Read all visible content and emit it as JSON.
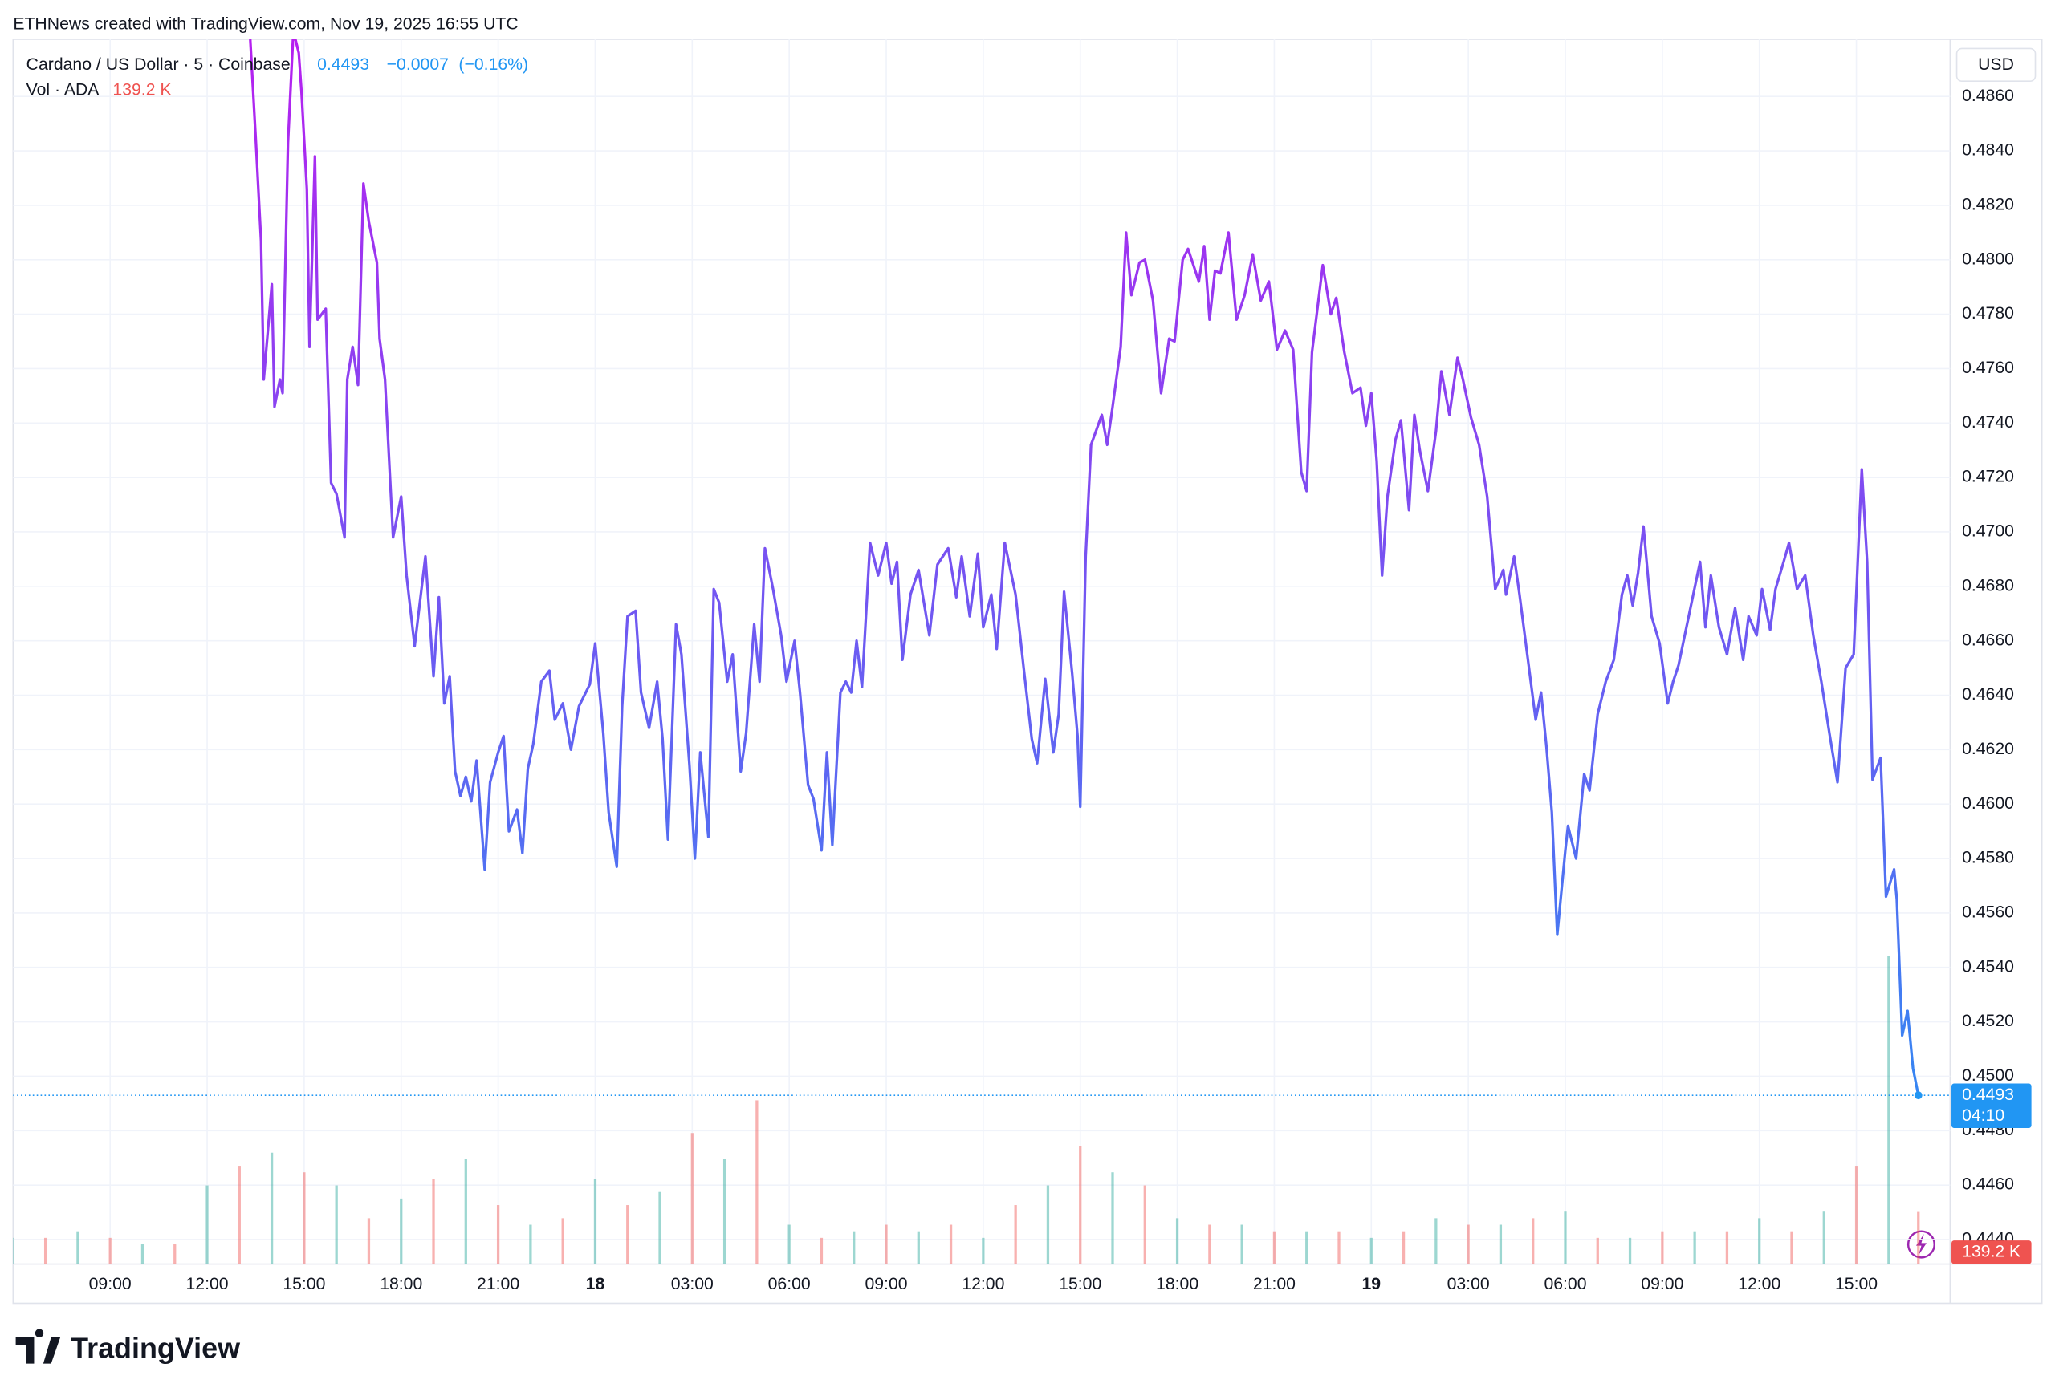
{
  "chart_data": {
    "type": "line",
    "attribution": "ETHNews created with TradingView.com, Nov 19, 2025 16:55 UTC",
    "title": "Cardano / US Dollar · 5 · Coinbase",
    "change": {
      "value": -0.0007,
      "label": "−0.0007"
    },
    "change_percent": {
      "value": -0.16,
      "label": "(−0.16%)"
    },
    "currency": "USD",
    "countdown": "04:10",
    "brand": "TradingView",
    "grid": true,
    "xlim": [
      "2025-11-17 06:00",
      "2025-11-19 17:54"
    ],
    "ylim": [
      0.4431,
      0.4881
    ],
    "xticks": [
      {
        "value": "2025-11-17 09:00",
        "label": "09:00"
      },
      {
        "value": "2025-11-17 12:00",
        "label": "12:00"
      },
      {
        "value": "2025-11-17 15:00",
        "label": "15:00"
      },
      {
        "value": "2025-11-17 18:00",
        "label": "18:00"
      },
      {
        "value": "2025-11-17 21:00",
        "label": "21:00"
      },
      {
        "value": "2025-11-18 00:00",
        "label": "18"
      },
      {
        "value": "2025-11-18 03:00",
        "label": "03:00"
      },
      {
        "value": "2025-11-18 06:00",
        "label": "06:00"
      },
      {
        "value": "2025-11-18 09:00",
        "label": "09:00"
      },
      {
        "value": "2025-11-18 12:00",
        "label": "12:00"
      },
      {
        "value": "2025-11-18 15:00",
        "label": "15:00"
      },
      {
        "value": "2025-11-18 18:00",
        "label": "18:00"
      },
      {
        "value": "2025-11-18 21:00",
        "label": "21:00"
      },
      {
        "value": "2025-11-19 00:00",
        "label": "19"
      },
      {
        "value": "2025-11-19 03:00",
        "label": "03:00"
      },
      {
        "value": "2025-11-19 06:00",
        "label": "06:00"
      },
      {
        "value": "2025-11-19 09:00",
        "label": "09:00"
      },
      {
        "value": "2025-11-19 12:00",
        "label": "12:00"
      },
      {
        "value": "2025-11-19 15:00",
        "label": "15:00"
      }
    ],
    "yticks": [
      {
        "value": 0.444,
        "label": "0.4440"
      },
      {
        "value": 0.446,
        "label": "0.4460"
      },
      {
        "value": 0.448,
        "label": "0.4480"
      },
      {
        "value": 0.45,
        "label": "0.4500"
      },
      {
        "value": 0.452,
        "label": "0.4520"
      },
      {
        "value": 0.454,
        "label": "0.4540"
      },
      {
        "value": 0.456,
        "label": "0.4560"
      },
      {
        "value": 0.458,
        "label": "0.4580"
      },
      {
        "value": 0.46,
        "label": "0.4600"
      },
      {
        "value": 0.462,
        "label": "0.4620"
      },
      {
        "value": 0.464,
        "label": "0.4640"
      },
      {
        "value": 0.466,
        "label": "0.4660"
      },
      {
        "value": 0.468,
        "label": "0.4680"
      },
      {
        "value": 0.47,
        "label": "0.4700"
      },
      {
        "value": 0.472,
        "label": "0.4720"
      },
      {
        "value": 0.474,
        "label": "0.4740"
      },
      {
        "value": 0.476,
        "label": "0.4760"
      },
      {
        "value": 0.478,
        "label": "0.4780"
      },
      {
        "value": 0.48,
        "label": "0.4800"
      },
      {
        "value": 0.482,
        "label": "0.4820"
      },
      {
        "value": 0.484,
        "label": "0.4840"
      },
      {
        "value": 0.486,
        "label": "0.4860"
      }
    ],
    "series": [
      {
        "name": "Cardano / US Dollar",
        "color": "#2196f3",
        "gradient_top": "#b620f0",
        "x": [
          "2025-11-17 13:20",
          "2025-11-17 13:30",
          "2025-11-17 13:40",
          "2025-11-17 13:45",
          "2025-11-17 14:00",
          "2025-11-17 14:05",
          "2025-11-17 14:15",
          "2025-11-17 14:20",
          "2025-11-17 14:30",
          "2025-11-17 14:40",
          "2025-11-17 14:50",
          "2025-11-17 14:55",
          "2025-11-17 15:05",
          "2025-11-17 15:10",
          "2025-11-17 15:20",
          "2025-11-17 15:25",
          "2025-11-17 15:40",
          "2025-11-17 15:50",
          "2025-11-17 16:00",
          "2025-11-17 16:15",
          "2025-11-17 16:20",
          "2025-11-17 16:30",
          "2025-11-17 16:40",
          "2025-11-17 16:50",
          "2025-11-17 17:00",
          "2025-11-17 17:15",
          "2025-11-17 17:20",
          "2025-11-17 17:30",
          "2025-11-17 17:45",
          "2025-11-17 18:00",
          "2025-11-17 18:10",
          "2025-11-17 18:25",
          "2025-11-17 18:45",
          "2025-11-17 19:00",
          "2025-11-17 19:10",
          "2025-11-17 19:20",
          "2025-11-17 19:30",
          "2025-11-17 19:40",
          "2025-11-17 19:50",
          "2025-11-17 20:00",
          "2025-11-17 20:10",
          "2025-11-17 20:20",
          "2025-11-17 20:35",
          "2025-11-17 20:45",
          "2025-11-17 21:00",
          "2025-11-17 21:10",
          "2025-11-17 21:20",
          "2025-11-17 21:35",
          "2025-11-17 21:45",
          "2025-11-17 21:55",
          "2025-11-17 22:05",
          "2025-11-17 22:20",
          "2025-11-17 22:35",
          "2025-11-17 22:45",
          "2025-11-17 23:00",
          "2025-11-17 23:15",
          "2025-11-17 23:30",
          "2025-11-17 23:50",
          "2025-11-18 00:00",
          "2025-11-18 00:15",
          "2025-11-18 00:25",
          "2025-11-18 00:40",
          "2025-11-18 00:50",
          "2025-11-18 01:00",
          "2025-11-18 01:15",
          "2025-11-18 01:25",
          "2025-11-18 01:40",
          "2025-11-18 01:55",
          "2025-11-18 02:05",
          "2025-11-18 02:15",
          "2025-11-18 02:30",
          "2025-11-18 02:40",
          "2025-11-18 02:55",
          "2025-11-18 03:05",
          "2025-11-18 03:15",
          "2025-11-18 03:30",
          "2025-11-18 03:40",
          "2025-11-18 03:50",
          "2025-11-18 04:05",
          "2025-11-18 04:15",
          "2025-11-18 04:30",
          "2025-11-18 04:40",
          "2025-11-18 04:55",
          "2025-11-18 05:05",
          "2025-11-18 05:15",
          "2025-11-18 05:30",
          "2025-11-18 05:45",
          "2025-11-18 05:55",
          "2025-11-18 06:10",
          "2025-11-18 06:20",
          "2025-11-18 06:35",
          "2025-11-18 06:45",
          "2025-11-18 07:00",
          "2025-11-18 07:10",
          "2025-11-18 07:20",
          "2025-11-18 07:35",
          "2025-11-18 07:45",
          "2025-11-18 07:55",
          "2025-11-18 08:05",
          "2025-11-18 08:15",
          "2025-11-18 08:30",
          "2025-11-18 08:45",
          "2025-11-18 09:00",
          "2025-11-18 09:10",
          "2025-11-18 09:20",
          "2025-11-18 09:30",
          "2025-11-18 09:45",
          "2025-11-18 10:00",
          "2025-11-18 10:10",
          "2025-11-18 10:20",
          "2025-11-18 10:35",
          "2025-11-18 10:55",
          "2025-11-18 11:10",
          "2025-11-18 11:20",
          "2025-11-18 11:35",
          "2025-11-18 11:50",
          "2025-11-18 12:00",
          "2025-11-18 12:15",
          "2025-11-18 12:25",
          "2025-11-18 12:40",
          "2025-11-18 13:00",
          "2025-11-18 13:15",
          "2025-11-18 13:30",
          "2025-11-18 13:40",
          "2025-11-18 13:55",
          "2025-11-18 14:10",
          "2025-11-18 14:20",
          "2025-11-18 14:30",
          "2025-11-18 14:45",
          "2025-11-18 14:55",
          "2025-11-18 15:00",
          "2025-11-18 15:10",
          "2025-11-18 15:20",
          "2025-11-18 15:40",
          "2025-11-18 15:50",
          "2025-11-18 16:00",
          "2025-11-18 16:15",
          "2025-11-18 16:25",
          "2025-11-18 16:35",
          "2025-11-18 16:50",
          "2025-11-18 17:00",
          "2025-11-18 17:15",
          "2025-11-18 17:30",
          "2025-11-18 17:45",
          "2025-11-18 17:55",
          "2025-11-18 18:10",
          "2025-11-18 18:20",
          "2025-11-18 18:40",
          "2025-11-18 18:50",
          "2025-11-18 19:00",
          "2025-11-18 19:10",
          "2025-11-18 19:20",
          "2025-11-18 19:35",
          "2025-11-18 19:50",
          "2025-11-18 20:05",
          "2025-11-18 20:20",
          "2025-11-18 20:35",
          "2025-11-18 20:50",
          "2025-11-18 21:05",
          "2025-11-18 21:20",
          "2025-11-18 21:35",
          "2025-11-18 21:50",
          "2025-11-18 22:00",
          "2025-11-18 22:10",
          "2025-11-18 22:30",
          "2025-11-18 22:45",
          "2025-11-18 22:55",
          "2025-11-18 23:10",
          "2025-11-18 23:25",
          "2025-11-18 23:40",
          "2025-11-18 23:50",
          "2025-11-19 00:00",
          "2025-11-19 00:10",
          "2025-11-19 00:20",
          "2025-11-19 00:30",
          "2025-11-19 00:45",
          "2025-11-19 00:55",
          "2025-11-19 01:10",
          "2025-11-19 01:20",
          "2025-11-19 01:30",
          "2025-11-19 01:45",
          "2025-11-19 02:00",
          "2025-11-19 02:10",
          "2025-11-19 02:25",
          "2025-11-19 02:40",
          "2025-11-19 02:50",
          "2025-11-19 03:05",
          "2025-11-19 03:20",
          "2025-11-19 03:35",
          "2025-11-19 03:50",
          "2025-11-19 04:05",
          "2025-11-19 04:10",
          "2025-11-19 04:25",
          "2025-11-19 04:35",
          "2025-11-19 04:50",
          "2025-11-19 05:05",
          "2025-11-19 05:15",
          "2025-11-19 05:25",
          "2025-11-19 05:35",
          "2025-11-19 05:45",
          "2025-11-19 06:00",
          "2025-11-19 06:05",
          "2025-11-19 06:20",
          "2025-11-19 06:35",
          "2025-11-19 06:45",
          "2025-11-19 07:00",
          "2025-11-19 07:15",
          "2025-11-19 07:30",
          "2025-11-19 07:45",
          "2025-11-19 07:55",
          "2025-11-19 08:05",
          "2025-11-19 08:15",
          "2025-11-19 08:25",
          "2025-11-19 08:40",
          "2025-11-19 08:55",
          "2025-11-19 09:10",
          "2025-11-19 09:20",
          "2025-11-19 09:30",
          "2025-11-19 09:50",
          "2025-11-19 10:10",
          "2025-11-19 10:20",
          "2025-11-19 10:30",
          "2025-11-19 10:45",
          "2025-11-19 11:00",
          "2025-11-19 11:15",
          "2025-11-19 11:30",
          "2025-11-19 11:40",
          "2025-11-19 11:55",
          "2025-11-19 12:05",
          "2025-11-19 12:20",
          "2025-11-19 12:30",
          "2025-11-19 12:45",
          "2025-11-19 12:55",
          "2025-11-19 13:10",
          "2025-11-19 13:25",
          "2025-11-19 13:40",
          "2025-11-19 13:55",
          "2025-11-19 14:10",
          "2025-11-19 14:25",
          "2025-11-19 14:40",
          "2025-11-19 14:55",
          "2025-11-19 15:10",
          "2025-11-19 15:20",
          "2025-11-19 15:30",
          "2025-11-19 15:45",
          "2025-11-19 15:55",
          "2025-11-19 16:10",
          "2025-11-19 16:15",
          "2025-11-19 16:25",
          "2025-11-19 16:35",
          "2025-11-19 16:45",
          "2025-11-19 16:55"
        ],
        "values": [
          0.4881,
          0.4845,
          0.4807,
          0.4756,
          0.4791,
          0.4746,
          0.4756,
          0.4751,
          0.4843,
          0.4884,
          0.4876,
          0.4862,
          0.4826,
          0.4768,
          0.4838,
          0.4778,
          0.4782,
          0.4718,
          0.4714,
          0.4698,
          0.4756,
          0.4768,
          0.4754,
          0.4828,
          0.4814,
          0.4799,
          0.4771,
          0.4756,
          0.4698,
          0.4713,
          0.4684,
          0.4658,
          0.4691,
          0.4647,
          0.4676,
          0.4637,
          0.4647,
          0.4612,
          0.4603,
          0.461,
          0.4601,
          0.4616,
          0.4576,
          0.4608,
          0.4619,
          0.4625,
          0.459,
          0.4598,
          0.4582,
          0.4613,
          0.4622,
          0.4645,
          0.4649,
          0.4631,
          0.4637,
          0.462,
          0.4636,
          0.4644,
          0.4659,
          0.4626,
          0.4597,
          0.4577,
          0.4636,
          0.4669,
          0.4671,
          0.4641,
          0.4628,
          0.4645,
          0.4624,
          0.4587,
          0.4666,
          0.4655,
          0.4614,
          0.458,
          0.4619,
          0.4588,
          0.4679,
          0.4674,
          0.4645,
          0.4655,
          0.4612,
          0.4626,
          0.4666,
          0.4645,
          0.4694,
          0.4679,
          0.4662,
          0.4645,
          0.466,
          0.4641,
          0.4607,
          0.4602,
          0.4583,
          0.4619,
          0.4585,
          0.4641,
          0.4645,
          0.4641,
          0.466,
          0.4643,
          0.4696,
          0.4684,
          0.4696,
          0.4681,
          0.4689,
          0.4653,
          0.4677,
          0.4686,
          0.4674,
          0.4662,
          0.4688,
          0.4694,
          0.4676,
          0.4691,
          0.4669,
          0.4692,
          0.4665,
          0.4677,
          0.4657,
          0.4696,
          0.4677,
          0.465,
          0.4624,
          0.4615,
          0.4646,
          0.4619,
          0.4633,
          0.4678,
          0.4648,
          0.4625,
          0.4599,
          0.4691,
          0.4732,
          0.4743,
          0.4732,
          0.4746,
          0.4768,
          0.481,
          0.4787,
          0.4799,
          0.48,
          0.4785,
          0.4751,
          0.4771,
          0.477,
          0.48,
          0.4804,
          0.4792,
          0.4805,
          0.4778,
          0.4796,
          0.4795,
          0.481,
          0.4778,
          0.4787,
          0.4802,
          0.4785,
          0.4792,
          0.4767,
          0.4774,
          0.4767,
          0.4722,
          0.4715,
          0.4766,
          0.4798,
          0.478,
          0.4786,
          0.4766,
          0.4751,
          0.4753,
          0.4739,
          0.4751,
          0.4726,
          0.4684,
          0.4713,
          0.4734,
          0.4741,
          0.4708,
          0.4743,
          0.473,
          0.4715,
          0.4737,
          0.4759,
          0.4743,
          0.4764,
          0.4756,
          0.4742,
          0.4732,
          0.4713,
          0.4679,
          0.4686,
          0.4677,
          0.4691,
          0.4677,
          0.4654,
          0.4631,
          0.4641,
          0.4621,
          0.4597,
          0.4552,
          0.4583,
          0.4592,
          0.458,
          0.4611,
          0.4605,
          0.4633,
          0.4645,
          0.4653,
          0.4677,
          0.4684,
          0.4673,
          0.4685,
          0.4702,
          0.4669,
          0.4659,
          0.4637,
          0.4645,
          0.4651,
          0.467,
          0.4689,
          0.4665,
          0.4684,
          0.4665,
          0.4655,
          0.4672,
          0.4653,
          0.4669,
          0.4662,
          0.4679,
          0.4664,
          0.4679,
          0.4689,
          0.4696,
          0.4679,
          0.4684,
          0.4662,
          0.4645,
          0.4626,
          0.4608,
          0.465,
          0.4655,
          0.4723,
          0.4689,
          0.4609,
          0.4617,
          0.4566,
          0.4576,
          0.4565,
          0.4515,
          0.4524,
          0.4503,
          0.4493
        ]
      }
    ],
    "volume": {
      "name": "Vol · ADA",
      "colors": [
        "#26a69a",
        "#ef5350"
      ],
      "x": [
        "2025-11-17 06:00",
        "2025-11-17 07:00",
        "2025-11-17 08:00",
        "2025-11-17 09:00",
        "2025-11-17 10:00",
        "2025-11-17 11:00",
        "2025-11-17 12:00",
        "2025-11-17 13:00",
        "2025-11-17 14:00",
        "2025-11-17 15:00",
        "2025-11-17 16:00",
        "2025-11-17 17:00",
        "2025-11-17 18:00",
        "2025-11-17 19:00",
        "2025-11-17 20:00",
        "2025-11-17 21:00",
        "2025-11-17 22:00",
        "2025-11-17 23:00",
        "2025-11-18 00:00",
        "2025-11-18 01:00",
        "2025-11-18 02:00",
        "2025-11-18 03:00",
        "2025-11-18 04:00",
        "2025-11-18 05:00",
        "2025-11-18 06:00",
        "2025-11-18 07:00",
        "2025-11-18 08:00",
        "2025-11-18 09:00",
        "2025-11-18 10:00",
        "2025-11-18 11:00",
        "2025-11-18 12:00",
        "2025-11-18 13:00",
        "2025-11-18 14:00",
        "2025-11-18 15:00",
        "2025-11-18 16:00",
        "2025-11-18 17:00",
        "2025-11-18 18:00",
        "2025-11-18 19:00",
        "2025-11-18 20:00",
        "2025-11-18 21:00",
        "2025-11-18 22:00",
        "2025-11-18 23:00",
        "2025-11-19 00:00",
        "2025-11-19 01:00",
        "2025-11-19 02:00",
        "2025-11-19 03:00",
        "2025-11-19 04:00",
        "2025-11-19 05:00",
        "2025-11-19 06:00",
        "2025-11-19 07:00",
        "2025-11-19 08:00",
        "2025-11-19 09:00",
        "2025-11-19 10:00",
        "2025-11-19 11:00",
        "2025-11-19 12:00",
        "2025-11-19 13:00",
        "2025-11-19 14:00",
        "2025-11-19 15:00",
        "2025-11-19 16:00",
        "2025-11-19 16:55"
      ],
      "values": [
        70000,
        70000,
        87500,
        70000,
        52500,
        52500,
        210000,
        262500,
        297500,
        245000,
        210000,
        122500,
        175000,
        227500,
        280000,
        157500,
        105000,
        122500,
        227500,
        157500,
        192500,
        350000,
        280000,
        437500,
        105000,
        70000,
        87500,
        105000,
        87500,
        105000,
        70000,
        157500,
        210000,
        315000,
        245000,
        210000,
        122500,
        105000,
        105000,
        87500,
        87500,
        87500,
        70000,
        87500,
        122500,
        105000,
        105000,
        122500,
        140000,
        70000,
        70000,
        87500,
        87500,
        87500,
        122500,
        87500,
        140000,
        262500,
        822500,
        139200
      ],
      "value_labels": [
        null,
        null,
        null,
        null,
        null,
        null,
        null,
        null,
        null,
        null,
        null,
        null,
        null,
        null,
        null,
        null,
        null,
        null,
        null,
        null,
        null,
        null,
        null,
        null,
        null,
        null,
        null,
        null,
        null,
        null,
        null,
        null,
        null,
        null,
        null,
        null,
        null,
        null,
        null,
        null,
        null,
        null,
        null,
        null,
        null,
        null,
        null,
        null,
        null,
        null,
        null,
        null,
        null,
        null,
        null,
        null,
        null,
        null,
        null,
        "139.2 K"
      ]
    }
  }
}
